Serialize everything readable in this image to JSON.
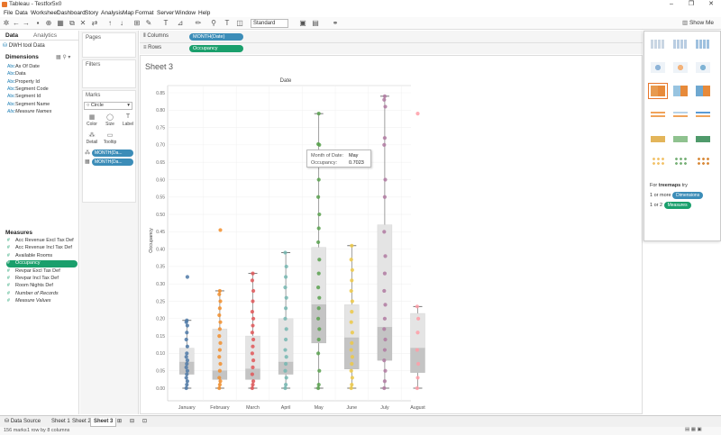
{
  "window": {
    "title": "Tableau - Testfor5x0"
  },
  "menu": [
    "File",
    "Data",
    "Worksheet",
    "Dashboard",
    "Story",
    "Analysis",
    "Map",
    "Format",
    "Server",
    "Window",
    "Help"
  ],
  "toolbar": {
    "fit": "Standard",
    "show_me": "Show Me"
  },
  "data_pane": {
    "tabs": [
      "Data",
      "Analytics"
    ],
    "datasource": "DWH tool Data",
    "dimensions_title": "Dimensions",
    "dimensions": [
      {
        "icon": "Abc",
        "label": "As Of Date"
      },
      {
        "icon": "Abc",
        "label": "Data"
      },
      {
        "icon": "Abc",
        "label": "Property Id"
      },
      {
        "icon": "Abc",
        "label": "Segment Code"
      },
      {
        "icon": "Abc",
        "label": "Segment Id"
      },
      {
        "icon": "Abc",
        "label": "Segment Name"
      },
      {
        "icon": "Abc",
        "label": "Measure Names",
        "italic": true
      }
    ],
    "measures_title": "Measures",
    "measures": [
      {
        "icon": "#",
        "label": "Acc Revenue Excl Tax Def"
      },
      {
        "icon": "#",
        "label": "Acc Revenue Incl Tax Def"
      },
      {
        "icon": "#",
        "label": "Available Rooms"
      },
      {
        "icon": "#",
        "label": "Occupancy",
        "selected": true
      },
      {
        "icon": "#",
        "label": "Revpar Excl Tax Def"
      },
      {
        "icon": "#",
        "label": "Revpar Incl Tax Def"
      },
      {
        "icon": "#",
        "label": "Room Nights Def"
      },
      {
        "icon": "#",
        "label": "Number of Records",
        "italic": true
      },
      {
        "icon": "#",
        "label": "Measure Values",
        "italic": true
      }
    ]
  },
  "cards": {
    "pages": "Pages",
    "filters": "Filters",
    "marks": "Marks",
    "mark_type": "Circle",
    "mark_buttons": [
      {
        "label": "Color",
        "icon": "color-icon",
        "glyph": "▦"
      },
      {
        "label": "Size",
        "icon": "size-icon",
        "glyph": "◯"
      },
      {
        "label": "Label",
        "icon": "label-icon",
        "glyph": "T"
      },
      {
        "label": "Detail",
        "icon": "detail-icon",
        "glyph": "⁂"
      },
      {
        "label": "Tooltip",
        "icon": "tooltip-icon",
        "glyph": "▭"
      }
    ],
    "mark_pills": [
      "MONTH(Da...",
      "MONTH(Da..."
    ]
  },
  "shelves": {
    "columns_label": "Columns",
    "columns_pill": "MONTH(Date)",
    "rows_label": "Rows",
    "rows_pill": "Occupancy"
  },
  "sheet": {
    "title": "Sheet 3",
    "x_header": "Date",
    "y_label": "Occupancy"
  },
  "tooltip": {
    "row1_label": "Month of Date:",
    "row1_value": "May",
    "row2_label": "Occupancy:",
    "row2_value": "0.7023"
  },
  "show_me": {
    "hint_prefix": "For",
    "hint_chart": "treemaps",
    "hint_try": "try",
    "line1": "1 or more",
    "pill1": "Dimensions",
    "line2": "1 or 2",
    "pill2": "Measures"
  },
  "bottom_tabs": [
    "Data Source",
    "Sheet 1",
    "Sheet 2",
    "Sheet 3"
  ],
  "status": {
    "marks": "156 marks",
    "rows_cols": "1 row by 8 columns"
  },
  "chart_data": {
    "type": "box",
    "categories": [
      "January",
      "February",
      "March",
      "April",
      "May",
      "June",
      "July",
      "August"
    ],
    "y_ticks": [
      "0.00",
      "0.05",
      "0.10",
      "0.15",
      "0.20",
      "0.25",
      "0.30",
      "0.35",
      "0.40",
      "0.45",
      "0.50",
      "0.55",
      "0.60",
      "0.65",
      "0.70",
      "0.75",
      "0.80",
      "0.85"
    ],
    "ylim": [
      0,
      0.85
    ],
    "colors": [
      "#4e79a7",
      "#f28e2b",
      "#e15759",
      "#76b7b2",
      "#59a14f",
      "#edc948",
      "#b07aa1",
      "#ff9da7"
    ],
    "boxes": [
      {
        "whisker_low": 0.0,
        "q1": 0.04,
        "median": 0.075,
        "q3": 0.115,
        "whisker_high": 0.195
      },
      {
        "whisker_low": 0.0,
        "q1": 0.025,
        "median": 0.05,
        "q3": 0.17,
        "whisker_high": 0.28
      },
      {
        "whisker_low": 0.0,
        "q1": 0.025,
        "median": 0.055,
        "q3": 0.15,
        "whisker_high": 0.33
      },
      {
        "whisker_low": 0.0,
        "q1": 0.04,
        "median": 0.075,
        "q3": 0.2,
        "whisker_high": 0.39
      },
      {
        "whisker_low": 0.0,
        "q1": 0.13,
        "median": 0.24,
        "q3": 0.405,
        "whisker_high": 0.79
      },
      {
        "whisker_low": 0.0,
        "q1": 0.055,
        "median": 0.145,
        "q3": 0.24,
        "whisker_high": 0.41
      },
      {
        "whisker_low": 0.0,
        "q1": 0.08,
        "median": 0.175,
        "q3": 0.47,
        "whisker_high": 0.84
      },
      {
        "whisker_low": 0.0,
        "q1": 0.045,
        "median": 0.115,
        "q3": 0.215,
        "whisker_high": 0.235
      }
    ],
    "points": [
      [
        0.0,
        0.01,
        0.02,
        0.03,
        0.04,
        0.05,
        0.06,
        0.07,
        0.08,
        0.09,
        0.1,
        0.12,
        0.14,
        0.16,
        0.18,
        0.19,
        0.195,
        0.32
      ],
      [
        0.0,
        0.01,
        0.02,
        0.03,
        0.05,
        0.07,
        0.09,
        0.11,
        0.13,
        0.15,
        0.17,
        0.19,
        0.21,
        0.23,
        0.25,
        0.27,
        0.28,
        0.455
      ],
      [
        0.0,
        0.01,
        0.02,
        0.04,
        0.06,
        0.08,
        0.1,
        0.12,
        0.14,
        0.16,
        0.18,
        0.2,
        0.22,
        0.25,
        0.28,
        0.31,
        0.33
      ],
      [
        0.0,
        0.01,
        0.03,
        0.05,
        0.07,
        0.09,
        0.11,
        0.14,
        0.17,
        0.2,
        0.23,
        0.26,
        0.29,
        0.32,
        0.35,
        0.39
      ],
      [
        0.0,
        0.01,
        0.05,
        0.1,
        0.14,
        0.17,
        0.2,
        0.23,
        0.26,
        0.29,
        0.33,
        0.37,
        0.42,
        0.46,
        0.5,
        0.55,
        0.6,
        0.7,
        0.7023,
        0.79
      ],
      [
        0.0,
        0.01,
        0.03,
        0.05,
        0.07,
        0.09,
        0.11,
        0.13,
        0.16,
        0.19,
        0.22,
        0.25,
        0.28,
        0.31,
        0.34,
        0.37,
        0.41
      ],
      [
        0.0,
        0.02,
        0.05,
        0.08,
        0.11,
        0.14,
        0.17,
        0.2,
        0.24,
        0.28,
        0.33,
        0.38,
        0.45,
        0.55,
        0.6,
        0.7,
        0.72,
        0.81,
        0.83,
        0.84
      ],
      [
        0.0,
        0.03,
        0.07,
        0.11,
        0.16,
        0.2,
        0.235,
        0.79
      ]
    ]
  }
}
